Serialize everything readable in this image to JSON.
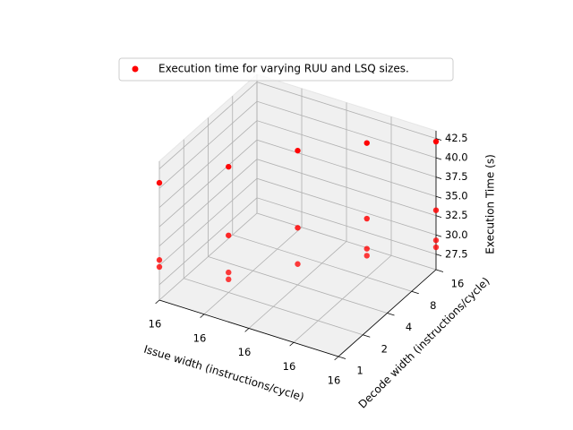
{
  "chart_data": {
    "type": "scatter3d",
    "series": [
      {
        "name": "Execution time for varying RUU and LSQ sizes.",
        "color": "red",
        "x": [
          0,
          0,
          0,
          1,
          1,
          1,
          1,
          2,
          2,
          2,
          3,
          3,
          3,
          3,
          4,
          4,
          4,
          4
        ],
        "y": [
          0,
          0,
          0,
          1,
          1,
          1,
          1,
          2,
          2,
          2,
          3,
          3,
          3,
          3,
          4,
          4,
          4,
          4
        ],
        "z": [
          40.7,
          30.7,
          29.8,
          41.8,
          32.9,
          28.1,
          27.2,
          42.9,
          32.9,
          28.2,
          42.9,
          33.1,
          29.2,
          28.3,
          42.1,
          33.2,
          29.3,
          28.4
        ]
      }
    ],
    "xlabel": "Issue width (instructions/cycle)",
    "ylabel": "Decode width (instructions/cycle)",
    "zlabel": "Execution Time (s)",
    "xlim": [
      0,
      4
    ],
    "ylim": [
      0,
      4
    ],
    "zlim": [
      25.5,
      43.5
    ],
    "xticks": [
      {
        "value": 0,
        "label": "16"
      },
      {
        "value": 1,
        "label": "16"
      },
      {
        "value": 2,
        "label": "16"
      },
      {
        "value": 3,
        "label": "16"
      },
      {
        "value": 4,
        "label": "16"
      }
    ],
    "yticks": [
      {
        "value": 0,
        "label": "1"
      },
      {
        "value": 1,
        "label": "2"
      },
      {
        "value": 2,
        "label": "4"
      },
      {
        "value": 3,
        "label": "8"
      },
      {
        "value": 4,
        "label": "16"
      }
    ],
    "zticks": [
      27.5,
      {
        "value": 30,
        "label": "30.0"
      },
      32.5,
      {
        "value": 35,
        "label": "35.0"
      },
      37.5,
      {
        "value": 40,
        "label": "40.0"
      },
      42.5
    ],
    "grid": true
  }
}
